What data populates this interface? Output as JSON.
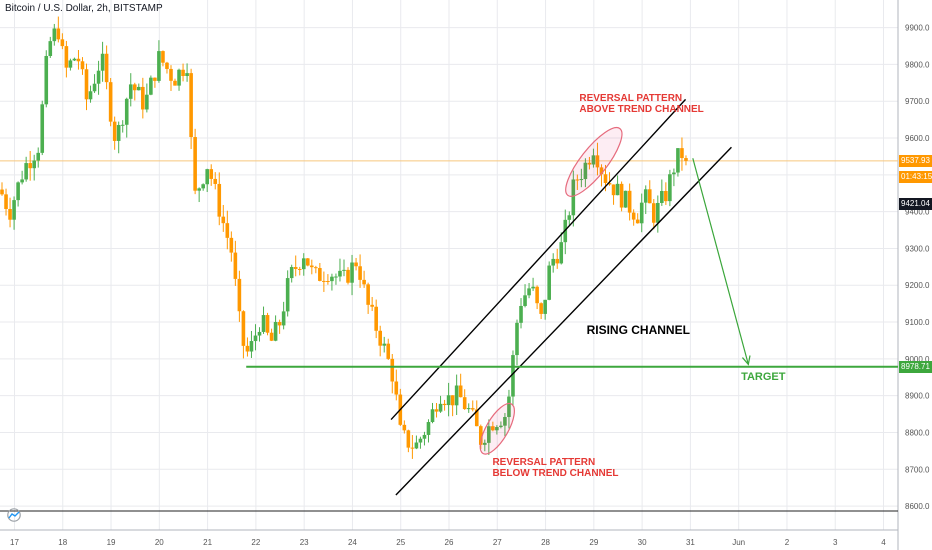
{
  "symbol_title": "Bitcoin / U.S. Dollar, 2h, BITSTAMP",
  "colors": {
    "up": "#4caf50",
    "down": "#ff9800",
    "grid": "#e9eaee",
    "axis_text": "#555555",
    "trend": "#000000",
    "target": "#3da73d",
    "arrow": "#3aa63a",
    "annotation": "#e53935",
    "price_line": "#f7c77e",
    "ellipse": "#e66b7d"
  },
  "chart_data": {
    "type": "candlestick",
    "title": "Bitcoin / U.S. Dollar, 2h, BITSTAMP",
    "x_ticks": [
      "17",
      "18",
      "19",
      "20",
      "21",
      "22",
      "23",
      "24",
      "25",
      "26",
      "27",
      "28",
      "29",
      "30",
      "31",
      "Jun",
      "2",
      "3",
      "4"
    ],
    "x_range_days": [
      16.7,
      35.3
    ],
    "y_ticks": [
      8600,
      8700,
      8800,
      8900,
      9000,
      9100,
      9200,
      9300,
      9400,
      9500,
      9600,
      9700,
      9800,
      9900
    ],
    "ylim": [
      8535,
      9975
    ],
    "grid": true,
    "price_labels": [
      {
        "value": 9537.93,
        "label": "9537.93",
        "bg": "#ff9800",
        "fg": "#ffffff"
      },
      {
        "value": 9495,
        "label": "01:43:15",
        "bg": "#ff9800",
        "fg": "#ffffff"
      },
      {
        "value": 9421.04,
        "label": "9421.04",
        "bg": "#131722",
        "fg": "#ffffff"
      },
      {
        "value": 8978.71,
        "label": "8978.71",
        "bg": "#3da73d",
        "fg": "#ffffff"
      }
    ],
    "anchors": [
      [
        16.7,
        9460
      ],
      [
        16.9,
        9400
      ],
      [
        17.2,
        9520
      ],
      [
        17.5,
        9580
      ],
      [
        17.7,
        9850
      ],
      [
        17.9,
        9900
      ],
      [
        18.05,
        9780
      ],
      [
        18.3,
        9830
      ],
      [
        18.5,
        9700
      ],
      [
        18.8,
        9820
      ],
      [
        19.1,
        9590
      ],
      [
        19.4,
        9750
      ],
      [
        19.7,
        9690
      ],
      [
        20.0,
        9820
      ],
      [
        20.3,
        9760
      ],
      [
        20.6,
        9810
      ],
      [
        20.7,
        9430
      ],
      [
        21.0,
        9530
      ],
      [
        21.3,
        9380
      ],
      [
        21.5,
        9290
      ],
      [
        21.7,
        9050
      ],
      [
        21.85,
        9010
      ],
      [
        22.1,
        9110
      ],
      [
        22.3,
        9040
      ],
      [
        22.5,
        9100
      ],
      [
        22.7,
        9220
      ],
      [
        23.0,
        9290
      ],
      [
        23.2,
        9220
      ],
      [
        23.5,
        9240
      ],
      [
        23.8,
        9210
      ],
      [
        24.1,
        9270
      ],
      [
        24.3,
        9150
      ],
      [
        24.6,
        9050
      ],
      [
        24.85,
        8950
      ],
      [
        25.0,
        8790
      ],
      [
        25.3,
        8760
      ],
      [
        25.6,
        8830
      ],
      [
        25.8,
        8910
      ],
      [
        26.0,
        8890
      ],
      [
        26.2,
        8900
      ],
      [
        26.45,
        8850
      ],
      [
        26.65,
        8780
      ],
      [
        26.9,
        8830
      ],
      [
        27.2,
        8850
      ],
      [
        27.45,
        9150
      ],
      [
        27.7,
        9200
      ],
      [
        27.9,
        9100
      ],
      [
        28.1,
        9260
      ],
      [
        28.35,
        9310
      ],
      [
        28.6,
        9480
      ],
      [
        28.8,
        9520
      ],
      [
        29.0,
        9580
      ],
      [
        29.2,
        9500
      ],
      [
        29.45,
        9460
      ],
      [
        29.7,
        9420
      ],
      [
        29.9,
        9390
      ],
      [
        30.05,
        9440
      ],
      [
        30.25,
        9390
      ],
      [
        30.5,
        9450
      ],
      [
        30.7,
        9540
      ],
      [
        30.85,
        9560
      ],
      [
        30.95,
        9537.93
      ]
    ],
    "series": [
      {
        "name": "",
        "kind": "line",
        "points": [
          [
            24.8,
            8835
          ],
          [
            30.9,
            9705
          ]
        ]
      },
      {
        "name": "",
        "kind": "line",
        "points": [
          [
            24.9,
            8630
          ],
          [
            31.85,
            9575
          ]
        ]
      },
      {
        "name": "",
        "kind": "line",
        "points": [
          [
            21.8,
            8978.71
          ],
          [
            35.3,
            8978.71
          ]
        ]
      },
      {
        "name": "",
        "kind": "arrow",
        "points": [
          [
            31.05,
            9545
          ],
          [
            32.2,
            8985
          ]
        ]
      }
    ],
    "highlights": [
      {
        "shape": "ellipse",
        "center": [
          29.0,
          9535
        ],
        "span_days": 0.55,
        "span_price": 230
      },
      {
        "shape": "ellipse",
        "center": [
          27.0,
          8810
        ],
        "span_days": 0.45,
        "span_price": 155
      }
    ],
    "annotations": [
      {
        "text": "REVERSAL PATTERN\nABOVE TREND CHANNEL",
        "at": [
          28.7,
          9705
        ],
        "style": "red"
      },
      {
        "text": "RISING CHANNEL",
        "at": [
          28.85,
          9075
        ],
        "style": "black"
      },
      {
        "text": "TARGET",
        "at": [
          32.05,
          8947
        ],
        "style": "green"
      },
      {
        "text": "REVERSAL PATTERN\nBELOW TREND CHANNEL",
        "at": [
          26.9,
          8718
        ],
        "style": "red"
      }
    ]
  }
}
